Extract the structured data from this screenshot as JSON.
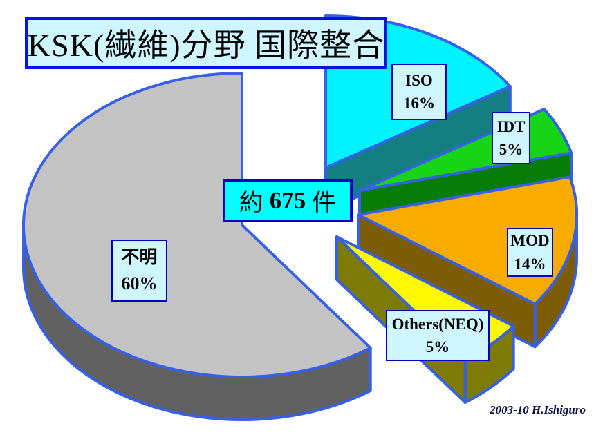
{
  "chart_data": {
    "type": "pie",
    "style": "3d-exploded",
    "title": "KSK(繊維)分野 国際整合",
    "center_label": {
      "prefix": "約",
      "value": "675",
      "suffix": "件"
    },
    "legend_position": "none",
    "slices": [
      {
        "id": "iso",
        "label": "ISO",
        "pct": 16,
        "pct_label": "16%",
        "top_color": "#00f2ff",
        "side_color": "#137f80"
      },
      {
        "id": "idt",
        "label": "IDT",
        "pct": 5,
        "pct_label": "5%",
        "top_color": "#17d417",
        "side_color": "#077c07"
      },
      {
        "id": "mod",
        "label": "MOD",
        "pct": 14,
        "pct_label": "14%",
        "top_color": "#f9ac00",
        "side_color": "#7c5c04"
      },
      {
        "id": "others",
        "label": "Others(NEQ)",
        "pct": 5,
        "pct_label": "5%",
        "top_color": "#fdf900",
        "side_color": "#7e7a06"
      },
      {
        "id": "fumei",
        "label": "不明",
        "pct": 60,
        "pct_label": "60%",
        "top_color": "#c3c3c3",
        "side_color": "#616161"
      }
    ]
  },
  "colors": {
    "outline": "#3660e6",
    "label_box_bg": "#cff6ff",
    "label_box_border": "#0000be",
    "title_box_bg": "#cff6ff",
    "title_box_border": "#0016e0",
    "center_box_bg": "#00ffff",
    "center_box_border": "#0000c6"
  },
  "footer": {
    "credit": "2003-10 H.Ishiguro"
  }
}
